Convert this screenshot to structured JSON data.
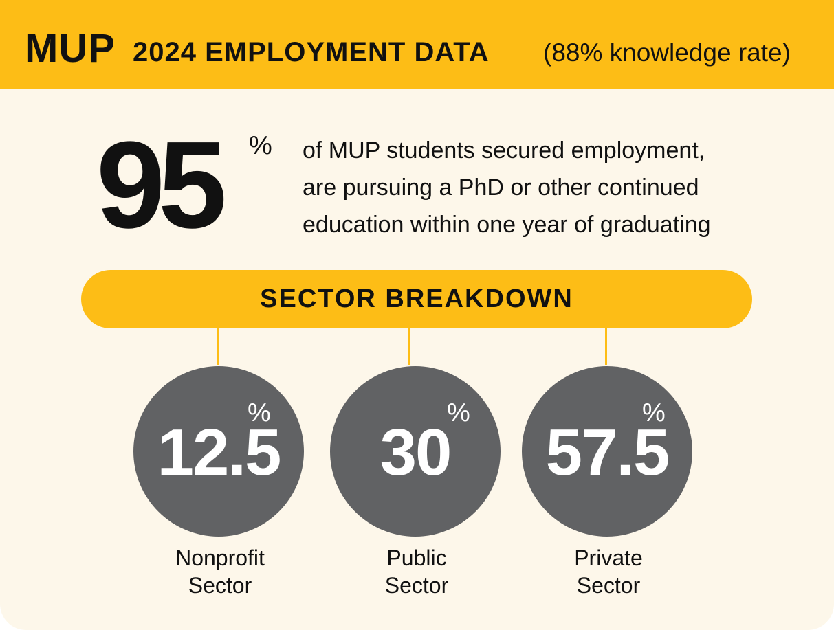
{
  "header": {
    "brand": "MUP",
    "title": "2024 EMPLOYMENT DATA",
    "subtitle": "(88% knowledge rate)"
  },
  "headline": {
    "value": "95",
    "unit": "%",
    "text_lines": [
      "of MUP students secured employment,",
      "are pursuing a PhD or other continued",
      "education within one year of graduating"
    ]
  },
  "breakdown_label": "SECTOR BREAKDOWN",
  "colors": {
    "accent": "#fdbd16",
    "circle": "#616264",
    "background": "#fdf7ea"
  },
  "chart_data": {
    "type": "table",
    "title": "SECTOR BREAKDOWN",
    "unit": "%",
    "categories": [
      "Nonprofit Sector",
      "Public Sector",
      "Private Sector"
    ],
    "values": [
      12.5,
      30,
      57.5
    ],
    "value_labels": [
      "12.5",
      "30",
      "57.5"
    ],
    "category_lines": [
      [
        "Nonprofit",
        "Sector"
      ],
      [
        "Public",
        "Sector"
      ],
      [
        "Private",
        "Sector"
      ]
    ]
  }
}
